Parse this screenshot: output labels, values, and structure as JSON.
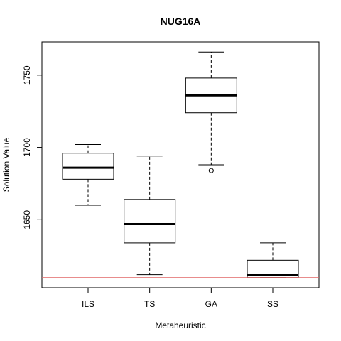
{
  "chart_data": {
    "type": "box",
    "title": "NUG16A",
    "xlabel": "Metaheuristic",
    "ylabel": "Solution Value",
    "categories": [
      "ILS",
      "TS",
      "GA",
      "SS"
    ],
    "ylim": [
      1603,
      1773
    ],
    "yticks": [
      1650,
      1700,
      1750
    ],
    "boxes": [
      {
        "name": "ILS",
        "whisker_low": 1660,
        "q1": 1678,
        "median": 1686,
        "q3": 1696,
        "whisker_high": 1702,
        "outliers": []
      },
      {
        "name": "TS",
        "whisker_low": 1612,
        "q1": 1634,
        "median": 1647,
        "q3": 1664,
        "whisker_high": 1694,
        "outliers": []
      },
      {
        "name": "GA",
        "whisker_low": 1688,
        "q1": 1724,
        "median": 1736,
        "q3": 1748,
        "whisker_high": 1766,
        "outliers": [
          1684
        ]
      },
      {
        "name": "SS",
        "whisker_low": 1610,
        "q1": 1610,
        "median": 1612,
        "q3": 1622,
        "whisker_high": 1634,
        "outliers": []
      }
    ],
    "reference_line": {
      "value": 1610,
      "color": "#e06666"
    },
    "colors": {
      "box": "#000000",
      "median": "#000000"
    },
    "grid": false,
    "legend": "none"
  }
}
